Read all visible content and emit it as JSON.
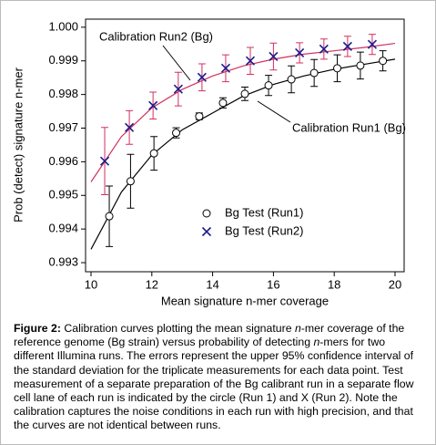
{
  "chart_data": {
    "type": "scatter",
    "xlabel": "Mean signature n-mer coverage",
    "ylabel": "Prob (detect) signature n-mer",
    "xlim": [
      9.82,
      20.3
    ],
    "xticks": [
      10,
      12,
      14,
      16,
      18,
      20
    ],
    "ylim": [
      0.99273,
      1.00024
    ],
    "yticks": [
      {
        "value": 0.993,
        "label": "0.993"
      },
      {
        "value": 0.994,
        "label": "0.994"
      },
      {
        "value": 0.995,
        "label": "0.995"
      },
      {
        "value": 0.996,
        "label": "0.996"
      },
      {
        "value": 0.997,
        "label": "0.997"
      },
      {
        "value": 0.998,
        "label": "0.998"
      },
      {
        "value": 0.999,
        "label": "0.999"
      },
      {
        "value": 1.0,
        "label": "1.000"
      }
    ],
    "series": [
      {
        "name": "Calibration Run1 (Bg)",
        "style": "line",
        "color": "#000000",
        "x": [
          10,
          11,
          12,
          13,
          14,
          15,
          16,
          17,
          18,
          19,
          20
        ],
        "values": [
          0.9934,
          0.9951,
          0.9962,
          0.99695,
          0.99745,
          0.99795,
          0.9983,
          0.99855,
          0.99875,
          0.9989,
          0.99905
        ]
      },
      {
        "name": "Calibration Run2 (Bg)",
        "style": "line",
        "color": "#d2305e",
        "x": [
          10,
          11,
          12,
          13,
          14,
          15,
          16,
          17,
          18,
          19,
          20
        ],
        "values": [
          0.9954,
          0.99675,
          0.9976,
          0.99815,
          0.99855,
          0.99885,
          0.99905,
          0.9992,
          0.9993,
          0.9994,
          0.99952
        ]
      },
      {
        "name": "Bg Test (Run1)",
        "style": "circle",
        "color": "#000000",
        "error_color": "#000000",
        "x": [
          10.6,
          11.3,
          12.07,
          12.8,
          13.56,
          14.34,
          15.06,
          15.84,
          16.59,
          17.34,
          18.1,
          18.86,
          19.6
        ],
        "values": [
          0.99438,
          0.99542,
          0.99625,
          0.99686,
          0.99735,
          0.99775,
          0.99802,
          0.99827,
          0.99845,
          0.99864,
          0.99878,
          0.99886,
          0.999
        ],
        "errors": [
          0.0009,
          0.0008,
          0.0005,
          0.00015,
          0.0001,
          0.00015,
          0.0002,
          0.0003,
          0.0004,
          0.0004,
          0.0004,
          0.0004,
          0.0003
        ]
      },
      {
        "name": "Bg Test (Run2)",
        "style": "x",
        "color": "#1c1c8c",
        "error_color": "#d2305e",
        "x": [
          10.45,
          11.26,
          12.04,
          12.87,
          13.65,
          14.43,
          15.24,
          16.0,
          16.86,
          17.66,
          18.44,
          19.25
        ],
        "values": [
          0.99602,
          0.99702,
          0.99767,
          0.99816,
          0.99851,
          0.99878,
          0.999,
          0.99913,
          0.99924,
          0.99935,
          0.99943,
          0.99949
        ],
        "errors": [
          0.001,
          0.0005,
          0.0004,
          0.0005,
          0.0004,
          0.0004,
          0.0004,
          0.0004,
          0.0003,
          0.0003,
          0.0003,
          0.0003
        ]
      }
    ]
  },
  "caption": [
    {
      "text": "Figure 2:",
      "style": "bold"
    },
    {
      "text": " Calibration curves plotting the mean signature "
    },
    {
      "text": "n",
      "style": "italic"
    },
    {
      "text": "-mer coverage of the reference genome (Bg strain) versus probability of detecting "
    },
    {
      "text": "n",
      "style": "italic"
    },
    {
      "text": "-mers for two different Illumina runs. The errors represent the upper 95% confidence interval of the standard deviation for the triplicate measurements for each data point. Test measurement of a separate preparation of the Bg calibrant run in a separate flow cell lane of each run is indicated by the circle (Run 1) and X (Run 2). Note the calibration captures the noise conditions in each run with high precision, and that the curves are not identical between runs."
    }
  ]
}
